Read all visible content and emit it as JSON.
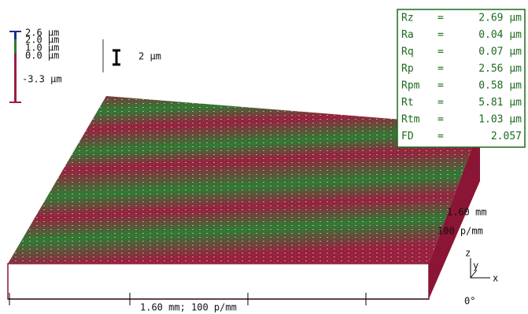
{
  "color_scale": {
    "labels": [
      "2.6 µm",
      "2.0 µm",
      "1.0 µm",
      "0.0 µm",
      "-3.3 µm"
    ]
  },
  "scale_bar": {
    "label": "2 µm"
  },
  "parameters": {
    "rows": [
      [
        "Rz",
        "=",
        "2.69 µm"
      ],
      [
        "Ra",
        "=",
        "0.04 µm"
      ],
      [
        "Rq",
        "=",
        "0.07 µm"
      ],
      [
        "Rp",
        "=",
        "2.56 µm"
      ],
      [
        "Rpm",
        "=",
        "0.58 µm"
      ],
      [
        "Rt",
        "=",
        "5.81 µm"
      ],
      [
        "Rtm",
        "=",
        "1.03 µm"
      ],
      [
        "FD",
        "=",
        "2.057"
      ]
    ]
  },
  "axes": {
    "x_label": "1.60 mm; 100 p/mm",
    "y_length": "1.60 mm",
    "y_resolution": "100 p/mm",
    "orientation": {
      "z": "z",
      "y": "y",
      "x": "x"
    },
    "angle": "0°"
  }
}
